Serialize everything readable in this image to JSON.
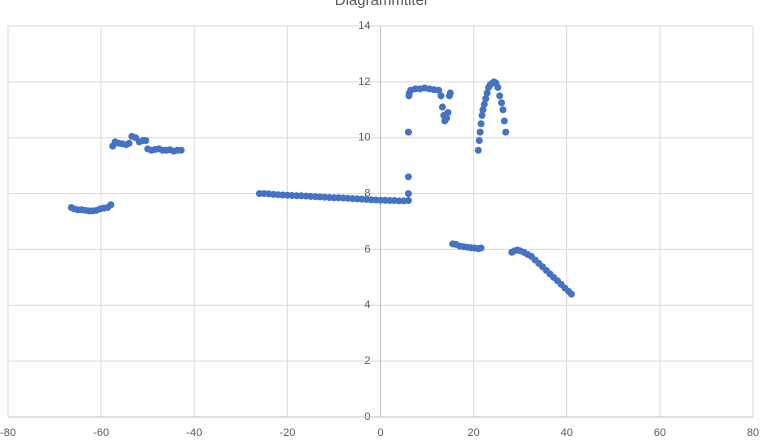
{
  "chart_data": {
    "type": "scatter",
    "title": "Diagrammtitel",
    "color": "#4472c4",
    "x": [
      -66.4,
      -65.8,
      -65,
      -64.2,
      -63.4,
      -62.6,
      -61.8,
      -61,
      -60.2,
      -59.4,
      -58.6,
      -57.9,
      -57.5,
      -57,
      -56.2,
      -55.4,
      -54.6,
      -54,
      -53.4,
      -52.6,
      -51.8,
      -51,
      -50.4,
      -50,
      -49.2,
      -48.4,
      -47.6,
      -46.8,
      -46,
      -45.2,
      -44.4,
      -43.6,
      -42.8,
      -26,
      -25,
      -24,
      -23,
      -22,
      -21,
      -20,
      -19,
      -18,
      -17,
      -16,
      -15,
      -14,
      -13,
      -12,
      -11,
      -10,
      -9,
      -8,
      -7,
      -6,
      -5,
      -4,
      -3,
      -2,
      -1,
      0,
      1,
      2,
      3,
      4,
      5,
      6,
      6,
      6,
      6,
      6.1,
      6.2,
      6.5,
      7.5,
      8.5,
      9.5,
      10.5,
      11.5,
      12.5,
      13,
      13.3,
      13.6,
      13.8,
      14.2,
      14.5,
      14.8,
      15,
      21,
      21.2,
      21.4,
      21.6,
      21.8,
      22,
      22.3,
      22.6,
      22.9,
      23.2,
      23.6,
      24,
      24.4,
      24.8,
      25.2,
      25.6,
      26,
      26.3,
      26.6,
      26.9,
      15.5,
      16.2,
      17,
      17.8,
      18.6,
      19.4,
      20.2,
      21,
      21.6,
      28.2,
      28.8,
      29.4,
      30,
      30.8,
      31.6,
      32.4,
      33.2,
      34,
      34.8,
      35.6,
      36.4,
      37.2,
      38,
      38.8,
      39.6,
      40.4,
      41
    ],
    "values": [
      7.5,
      7.45,
      7.42,
      7.42,
      7.4,
      7.38,
      7.38,
      7.4,
      7.45,
      7.48,
      7.5,
      7.6,
      9.7,
      9.85,
      9.8,
      9.78,
      9.75,
      9.8,
      10.05,
      10,
      9.85,
      9.9,
      9.9,
      9.6,
      9.55,
      9.58,
      9.6,
      9.55,
      9.55,
      9.57,
      9.52,
      9.55,
      9.55,
      8,
      8,
      7.99,
      7.97,
      7.96,
      7.95,
      7.94,
      7.93,
      7.92,
      7.92,
      7.91,
      7.9,
      7.89,
      7.88,
      7.87,
      7.86,
      7.85,
      7.85,
      7.84,
      7.83,
      7.82,
      7.81,
      7.8,
      7.79,
      7.78,
      7.77,
      7.76,
      7.76,
      7.75,
      7.75,
      7.74,
      7.74,
      7.75,
      8,
      8.6,
      10.2,
      11.5,
      11.6,
      11.7,
      11.75,
      11.75,
      11.78,
      11.75,
      11.72,
      11.7,
      11.5,
      11.1,
      10.8,
      10.6,
      10.7,
      10.9,
      11.5,
      11.6,
      9.55,
      9.9,
      10.2,
      10.5,
      10.8,
      11,
      11.2,
      11.4,
      11.6,
      11.8,
      11.9,
      11.95,
      12,
      11.95,
      11.8,
      11.5,
      11.25,
      11,
      10.6,
      10.2,
      6.2,
      6.18,
      6.12,
      6.1,
      6.08,
      6.06,
      6.05,
      6.03,
      6.05,
      5.9,
      5.95,
      5.98,
      5.95,
      5.9,
      5.82,
      5.75,
      5.62,
      5.5,
      5.38,
      5.25,
      5.12,
      5,
      4.88,
      4.75,
      4.62,
      4.5,
      4.4
    ],
    "xlim": [
      -80,
      80
    ],
    "xticks": [
      -80,
      -60,
      -40,
      -20,
      0,
      20,
      40,
      60,
      80
    ],
    "ylim": [
      0,
      14
    ],
    "yticks": [
      0,
      2,
      4,
      6,
      8,
      10,
      12,
      14
    ],
    "grid": true
  }
}
